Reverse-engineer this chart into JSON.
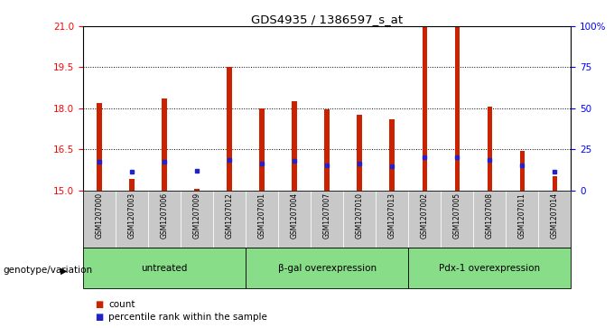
{
  "title": "GDS4935 / 1386597_s_at",
  "samples": [
    "GSM1207000",
    "GSM1207003",
    "GSM1207006",
    "GSM1207009",
    "GSM1207012",
    "GSM1207001",
    "GSM1207004",
    "GSM1207007",
    "GSM1207010",
    "GSM1207013",
    "GSM1207002",
    "GSM1207005",
    "GSM1207008",
    "GSM1207011",
    "GSM1207014"
  ],
  "counts": [
    18.2,
    15.4,
    18.35,
    15.05,
    19.5,
    18.0,
    18.25,
    17.95,
    17.75,
    17.6,
    21.0,
    21.0,
    18.05,
    16.45,
    15.5
  ],
  "pct_y": [
    16.05,
    15.68,
    16.05,
    15.72,
    16.1,
    15.98,
    16.08,
    15.92,
    15.98,
    15.88,
    16.22,
    16.22,
    16.1,
    15.92,
    15.68
  ],
  "ymin": 15,
  "ymax": 21,
  "yticks": [
    15,
    16.5,
    18,
    19.5,
    21
  ],
  "right_yticks": [
    0,
    25,
    50,
    75,
    100
  ],
  "bar_color": "#cc2200",
  "marker_color": "#2222cc",
  "tick_bg_color": "#c8c8c8",
  "groups": [
    {
      "label": "untreated",
      "start": 0,
      "end": 5
    },
    {
      "label": "β-gal overexpression",
      "start": 5,
      "end": 10
    },
    {
      "label": "Pdx-1 overexpression",
      "start": 10,
      "end": 15
    }
  ],
  "group_color": "#88dd88",
  "legend_label_count": "count",
  "legend_label_pct": "percentile rank within the sample",
  "genotype_label": "genotype/variation",
  "bar_width": 0.15
}
